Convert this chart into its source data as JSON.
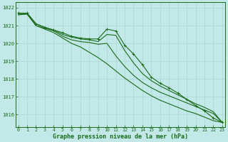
{
  "title": "Graphe pression niveau de la mer (hPa)",
  "x_labels": [
    "0",
    "1",
    "2",
    "3",
    "4",
    "5",
    "6",
    "7",
    "8",
    "9",
    "10",
    "11",
    "12",
    "13",
    "14",
    "15",
    "16",
    "17",
    "18",
    "19",
    "20",
    "21",
    "22",
    "23"
  ],
  "ylim": [
    1015.3,
    1022.3
  ],
  "yticks": [
    1016,
    1017,
    1018,
    1019,
    1020,
    1021,
    1022
  ],
  "bg_color": "#c2e8e8",
  "grid_color": "#b0d8d8",
  "line_color": "#1a6b1a",
  "line1_marked": [
    1021.7,
    1021.7,
    1021.1,
    1020.9,
    1020.75,
    1020.6,
    1020.4,
    1020.3,
    1020.25,
    1020.25,
    1020.8,
    1020.7,
    1019.9,
    1019.4,
    1018.8,
    1018.1,
    1017.75,
    1017.5,
    1017.2,
    1016.85,
    1016.5,
    1016.2,
    1015.8,
    1015.55
  ],
  "line2": [
    1021.7,
    1021.7,
    1021.1,
    1020.9,
    1020.75,
    1020.5,
    1020.35,
    1020.25,
    1020.2,
    1020.1,
    1020.5,
    1020.45,
    1019.6,
    1018.9,
    1018.3,
    1017.9,
    1017.6,
    1017.35,
    1017.1,
    1016.85,
    1016.6,
    1016.4,
    1016.15,
    1015.55
  ],
  "line3": [
    1021.65,
    1021.65,
    1021.0,
    1020.85,
    1020.7,
    1020.4,
    1020.2,
    1020.1,
    1020.05,
    1019.95,
    1020.0,
    1019.3,
    1018.7,
    1018.2,
    1017.8,
    1017.5,
    1017.25,
    1017.05,
    1016.85,
    1016.65,
    1016.45,
    1016.25,
    1016.05,
    1015.55
  ],
  "line4_straight": [
    1021.6,
    1021.65,
    1021.0,
    1020.8,
    1020.6,
    1020.3,
    1020.0,
    1019.8,
    1019.5,
    1019.2,
    1018.85,
    1018.45,
    1018.05,
    1017.7,
    1017.35,
    1017.05,
    1016.8,
    1016.6,
    1016.4,
    1016.2,
    1016.05,
    1015.85,
    1015.65,
    1015.55
  ]
}
